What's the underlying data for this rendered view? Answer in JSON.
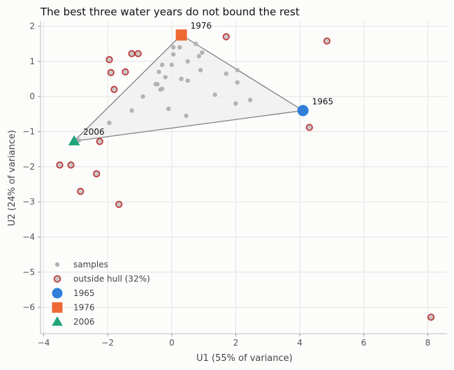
{
  "chart_data": {
    "type": "scatter",
    "title": "The best three water years do not bound the rest",
    "xlabel": "U1  (55% of variance)",
    "ylabel": "U2  (24% of variance)",
    "xlim": [
      -4.1,
      8.6
    ],
    "ylim": [
      -6.75,
      2.15
    ],
    "xticks": [
      -4,
      -2,
      0,
      2,
      4,
      6,
      8
    ],
    "yticks": [
      2,
      1,
      0,
      -1,
      -2,
      -3,
      -4,
      -5,
      -6
    ],
    "tick_labels_x": [
      "−4",
      "−2",
      "0",
      "2",
      "4",
      "6",
      "8"
    ],
    "tick_labels_y": [
      "2",
      "1",
      "0",
      "−1",
      "−2",
      "−3",
      "−4",
      "−5",
      "−6"
    ],
    "grid": true,
    "legend_position": "lower-left",
    "series": [
      {
        "name": "samples",
        "color": "#b3b3b3",
        "points": [
          [
            0.25,
            1.4
          ],
          [
            0.05,
            1.4
          ],
          [
            0.05,
            1.2
          ],
          [
            0.75,
            1.5
          ],
          [
            0.85,
            1.15
          ],
          [
            0.95,
            1.25
          ],
          [
            -0.3,
            0.9
          ],
          [
            0.0,
            0.9
          ],
          [
            0.5,
            1.0
          ],
          [
            -0.4,
            0.7
          ],
          [
            0.9,
            0.75
          ],
          [
            -0.2,
            0.55
          ],
          [
            0.3,
            0.5
          ],
          [
            0.5,
            0.45
          ],
          [
            -0.5,
            0.35
          ],
          [
            -0.45,
            0.35
          ],
          [
            -0.35,
            0.2
          ],
          [
            -0.3,
            0.22
          ],
          [
            -0.9,
            0.0
          ],
          [
            -1.25,
            -0.4
          ],
          [
            -0.1,
            -0.35
          ],
          [
            0.45,
            -0.55
          ],
          [
            -1.95,
            -0.75
          ],
          [
            1.7,
            0.65
          ],
          [
            2.05,
            0.75
          ],
          [
            2.05,
            0.4
          ],
          [
            1.35,
            0.05
          ],
          [
            2.0,
            -0.2
          ],
          [
            2.45,
            -0.1
          ],
          [
            -2.9,
            -1.25
          ]
        ]
      },
      {
        "name": "outside hull (32%)",
        "color": "#c0393b",
        "fill": "#c8c8c8",
        "points": [
          [
            -1.95,
            1.05
          ],
          [
            -1.25,
            1.22
          ],
          [
            -1.05,
            1.22
          ],
          [
            -1.9,
            0.68
          ],
          [
            -1.45,
            0.7
          ],
          [
            -1.8,
            0.2
          ],
          [
            1.7,
            1.7
          ],
          [
            4.85,
            1.58
          ],
          [
            4.3,
            -0.88
          ],
          [
            -2.25,
            -1.28
          ],
          [
            -3.5,
            -1.95
          ],
          [
            -3.15,
            -1.95
          ],
          [
            -2.35,
            -2.2
          ],
          [
            -2.85,
            -2.7
          ],
          [
            -1.65,
            -3.07
          ],
          [
            8.1,
            -6.28
          ]
        ]
      },
      {
        "name": "1965",
        "color": "#2f7ed8",
        "marker": "circle",
        "points": [
          [
            4.1,
            -0.4
          ]
        ]
      },
      {
        "name": "1976",
        "color": "#ee6a35",
        "marker": "square",
        "points": [
          [
            0.3,
            1.75
          ]
        ]
      },
      {
        "name": "2006",
        "color": "#22a57d",
        "marker": "triangle",
        "points": [
          [
            -3.05,
            -1.27
          ]
        ]
      }
    ],
    "hull": {
      "vertices": [
        "1976",
        "1965",
        "2006"
      ],
      "fill": "#f0f0f0",
      "stroke": "#808080"
    },
    "annotations": [
      "1976",
      "1965",
      "2006"
    ]
  }
}
